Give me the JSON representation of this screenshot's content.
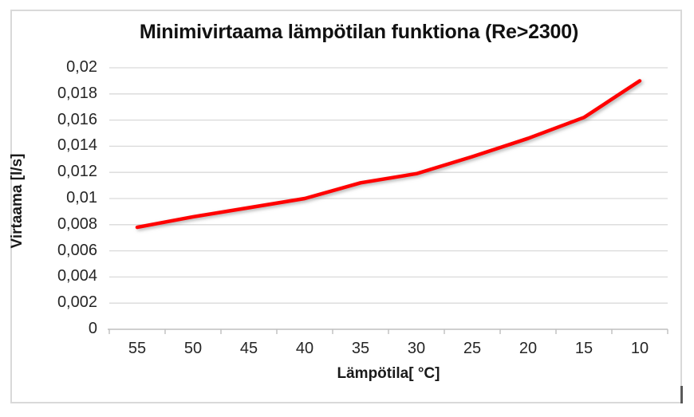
{
  "chart_data": {
    "type": "line",
    "title": "Minimivirtaama lämpötilan funktiona (Re>2300)",
    "xlabel": "Lämpötila[ °C]",
    "ylabel": "Virtaama [l/s]",
    "categories": [
      "55",
      "50",
      "45",
      "40",
      "35",
      "30",
      "25",
      "20",
      "15",
      "10"
    ],
    "series": [
      {
        "name": "Minimivirtaama",
        "values": [
          0.0078,
          0.0086,
          0.0093,
          0.01,
          0.0112,
          0.0119,
          0.0132,
          0.0146,
          0.0162,
          0.019
        ]
      }
    ],
    "ylim": [
      0,
      0.02
    ],
    "ytick_step": 0.002,
    "ytick_labels": [
      "0",
      "0,002",
      "0,004",
      "0,006",
      "0,008",
      "0,01",
      "0,012",
      "0,014",
      "0,016",
      "0,018",
      "0,02"
    ],
    "x_axis_note": "temperature axis runs high-to-low, 55 at left to 10 at right",
    "grid": true,
    "legend_position": "none",
    "colors": {
      "line": "#ff0000",
      "gridline": "#d9d9d9",
      "axis_line": "#bfbfbf",
      "text": "#262626",
      "frame_border": "#d9d9d9",
      "background": "#ffffff"
    }
  }
}
